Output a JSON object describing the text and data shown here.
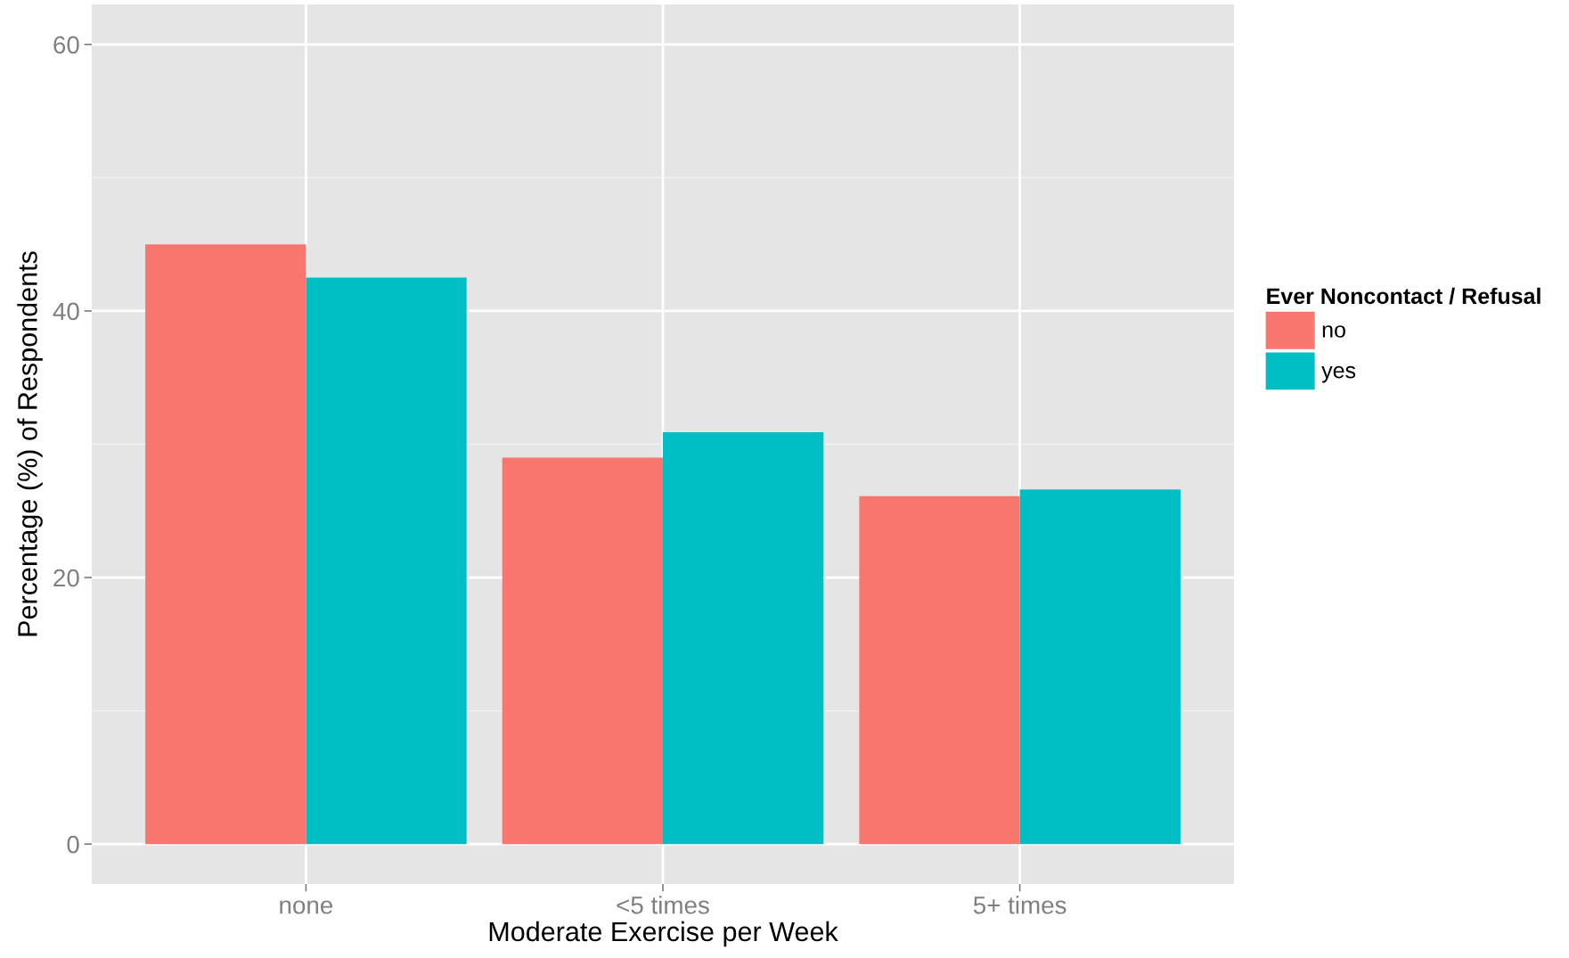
{
  "chart_data": {
    "type": "bar",
    "xlabel": "Moderate Exercise per Week",
    "ylabel": "Percentage (%) of Respondents",
    "legend_title": "Ever Noncontact / Refusal",
    "categories": [
      "none",
      "<5 times",
      "5+ times"
    ],
    "series": [
      {
        "name": "no",
        "color": "#f8766d",
        "values": [
          45.0,
          29.0,
          26.1
        ]
      },
      {
        "name": "yes",
        "color": "#00bfc4",
        "values": [
          42.5,
          30.9,
          26.6
        ]
      }
    ],
    "ylim": [
      -3,
      63
    ],
    "yticks": [
      0,
      20,
      40,
      60
    ],
    "grid": true,
    "legend": "right"
  }
}
